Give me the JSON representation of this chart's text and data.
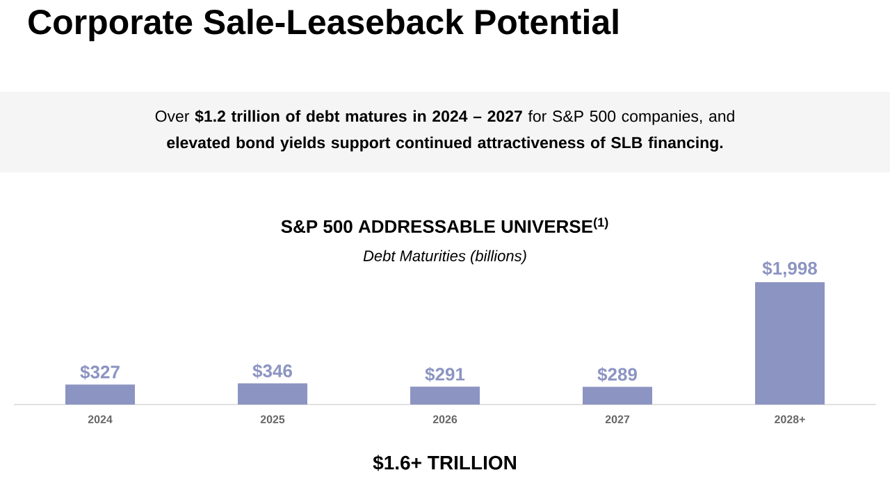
{
  "chart_data": {
    "type": "bar",
    "title": "Corporate Sale-Leaseback Potential",
    "subtitle": "Over **$1.2 trillion of debt matures in 2024 – 2027** for S&P 500 companies, and **elevated bond yields support continued attractiveness of SLB financing.**",
    "annotations": [
      "S&P 500 ADDRESSABLE UNIVERSE$^{(1)}$",
      "Debt Maturities (billions)",
      "$1.6+ TRILLION"
    ],
    "categories": [
      "2024",
      "2025",
      "2026",
      "2027",
      "2028+"
    ],
    "values": [
      327,
      346,
      291,
      289,
      1998
    ],
    "value_labels": [
      "$327",
      "$346",
      "$291",
      "$289",
      "$1,998"
    ],
    "color": "#8c94c2"
  }
}
